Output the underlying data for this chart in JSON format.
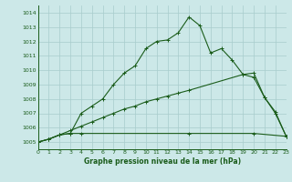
{
  "title": "Graphe pression niveau de la mer (hPa)",
  "bg_color": "#cce8e8",
  "grid_color": "#a8cccc",
  "line_color": "#1a5c1a",
  "x_min": 0,
  "x_max": 23,
  "y_min": 1004.5,
  "y_max": 1014.5,
  "y_ticks": [
    1005,
    1006,
    1007,
    1008,
    1009,
    1010,
    1011,
    1012,
    1013,
    1014
  ],
  "series1_x": [
    0,
    1,
    2,
    3,
    4,
    5,
    6,
    7,
    8,
    9,
    10,
    11,
    12,
    13,
    14,
    15,
    16,
    17,
    18,
    19,
    20,
    21,
    22,
    23
  ],
  "series1_y": [
    1005.0,
    1005.2,
    1005.5,
    1005.6,
    1007.0,
    1007.5,
    1008.0,
    1009.0,
    1009.8,
    1010.3,
    1011.5,
    1012.0,
    1012.1,
    1012.6,
    1013.7,
    1013.1,
    1011.2,
    1011.5,
    1010.7,
    1009.7,
    1009.5,
    1008.1,
    1007.0,
    1005.4
  ],
  "series2_x": [
    0,
    1,
    2,
    3,
    4,
    14,
    20,
    23
  ],
  "series2_y": [
    1005.0,
    1005.2,
    1005.5,
    1005.6,
    1005.6,
    1005.6,
    1005.6,
    1005.4
  ],
  "series3_x": [
    0,
    1,
    2,
    3,
    4,
    5,
    6,
    7,
    8,
    9,
    10,
    11,
    12,
    13,
    14,
    19,
    20,
    21,
    22,
    23
  ],
  "series3_y": [
    1005.0,
    1005.2,
    1005.5,
    1005.8,
    1006.1,
    1006.4,
    1006.7,
    1007.0,
    1007.3,
    1007.5,
    1007.8,
    1008.0,
    1008.2,
    1008.4,
    1008.6,
    1009.7,
    1009.8,
    1008.1,
    1007.1,
    1005.4
  ]
}
